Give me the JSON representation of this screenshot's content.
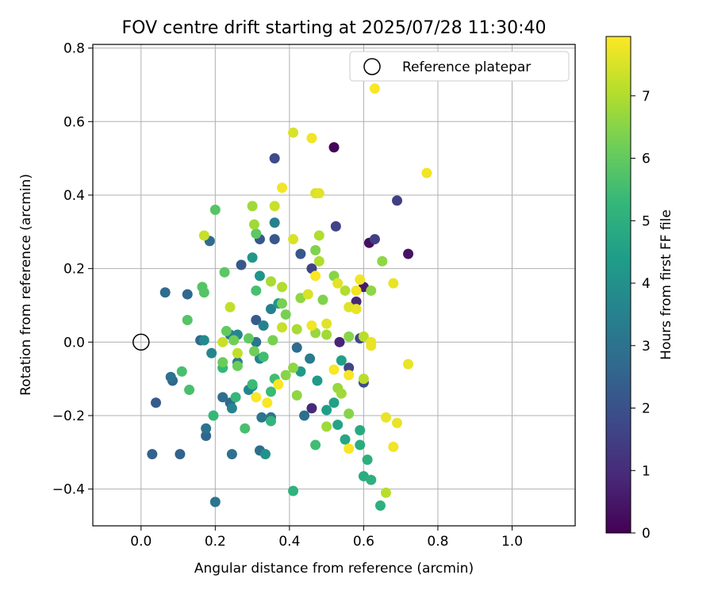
{
  "chart_data": {
    "type": "scatter",
    "title": "FOV centre drift starting at 2025/07/28 11:30:40",
    "xlabel": "Angular distance from reference (arcmin)",
    "ylabel": "Rotation from reference (arcmin)",
    "xlim": [
      -0.13,
      1.17
    ],
    "ylim": [
      -0.5,
      0.81
    ],
    "xticks": [
      0.0,
      0.2,
      0.4,
      0.6,
      0.8,
      1.0
    ],
    "xtick_labels": [
      "0.0",
      "0.2",
      "0.4",
      "0.6",
      "0.8",
      "1.0"
    ],
    "yticks": [
      -0.4,
      -0.2,
      0.0,
      0.2,
      0.4,
      0.6,
      0.8
    ],
    "ytick_labels": [
      "−0.4",
      "−0.2",
      "0.0",
      "0.2",
      "0.4",
      "0.6",
      "0.8"
    ],
    "grid": true,
    "legend": {
      "position": "top-right",
      "entries": [
        {
          "label": "Reference platepar",
          "marker": "open-circle"
        }
      ]
    },
    "reference_point": [
      0.0,
      0.0
    ],
    "colorbar": {
      "label": "Hours from first FF file",
      "colormap": "viridis",
      "range": [
        0,
        7.95
      ],
      "ticks": [
        0,
        1,
        2,
        3,
        4,
        5,
        6,
        7
      ],
      "tick_labels": [
        "0",
        "1",
        "2",
        "3",
        "4",
        "5",
        "6",
        "7"
      ],
      "stops": [
        "#440154",
        "#482878",
        "#3e4989",
        "#31688e",
        "#26828e",
        "#1f9e89",
        "#35b779",
        "#6ece58",
        "#b5de2b",
        "#fde725"
      ]
    },
    "points": [
      [
        0.52,
        0.53,
        0.1
      ],
      [
        0.615,
        0.27,
        0.3
      ],
      [
        0.72,
        0.24,
        0.4
      ],
      [
        0.6,
        0.15,
        0.6
      ],
      [
        0.535,
        0.0,
        0.8
      ],
      [
        0.58,
        0.11,
        0.9
      ],
      [
        0.46,
        -0.18,
        0.9
      ],
      [
        0.63,
        0.28,
        1.5
      ],
      [
        0.69,
        0.385,
        1.5
      ],
      [
        0.525,
        0.315,
        1.6
      ],
      [
        0.36,
        0.5,
        1.8
      ],
      [
        0.46,
        0.2,
        1.6
      ],
      [
        0.56,
        -0.07,
        1.7
      ],
      [
        0.59,
        0.01,
        1.8
      ],
      [
        0.6,
        -0.11,
        1.9
      ],
      [
        0.43,
        0.24,
        2.2
      ],
      [
        0.36,
        0.28,
        2.2
      ],
      [
        0.32,
        0.28,
        2.2
      ],
      [
        0.27,
        0.21,
        2.2
      ],
      [
        0.31,
        0.06,
        2.3
      ],
      [
        0.04,
        -0.165,
        2.3
      ],
      [
        0.03,
        -0.305,
        2.5
      ],
      [
        0.105,
        -0.305,
        2.5
      ],
      [
        0.175,
        -0.255,
        2.6
      ],
      [
        0.085,
        -0.105,
        2.6
      ],
      [
        0.16,
        0.005,
        2.6
      ],
      [
        0.125,
        0.13,
        2.7
      ],
      [
        0.065,
        0.135,
        2.8
      ],
      [
        0.185,
        0.275,
        2.8
      ],
      [
        0.24,
        -0.165,
        2.7
      ],
      [
        0.32,
        -0.295,
        2.9
      ],
      [
        0.42,
        -0.015,
        2.8
      ],
      [
        0.44,
        -0.2,
        2.9
      ],
      [
        0.22,
        -0.15,
        2.9
      ],
      [
        0.08,
        -0.095,
        3.0
      ],
      [
        0.175,
        -0.235,
        3.0
      ],
      [
        0.245,
        -0.305,
        3.0
      ],
      [
        0.35,
        -0.205,
        3.1
      ],
      [
        0.325,
        -0.205,
        3.1
      ],
      [
        0.31,
        0.0,
        3.1
      ],
      [
        0.2,
        -0.435,
        3.1
      ],
      [
        0.26,
        -0.055,
        3.3
      ],
      [
        0.24,
        0.02,
        3.3
      ],
      [
        0.455,
        -0.045,
        3.3
      ],
      [
        0.36,
        0.325,
        3.5
      ],
      [
        0.35,
        0.09,
        3.5
      ],
      [
        0.33,
        0.045,
        3.5
      ],
      [
        0.29,
        -0.13,
        3.6
      ],
      [
        0.32,
        -0.045,
        3.6
      ],
      [
        0.245,
        -0.18,
        3.6
      ],
      [
        0.26,
        0.02,
        3.7
      ],
      [
        0.19,
        -0.03,
        3.7
      ],
      [
        0.17,
        0.005,
        3.8
      ],
      [
        0.3,
        -0.12,
        3.8
      ],
      [
        0.335,
        -0.305,
        4.0
      ],
      [
        0.32,
        0.18,
        4.1
      ],
      [
        0.3,
        0.23,
        4.2
      ],
      [
        0.37,
        0.105,
        4.2
      ],
      [
        0.43,
        -0.08,
        4.3
      ],
      [
        0.475,
        -0.105,
        4.3
      ],
      [
        0.5,
        -0.185,
        4.4
      ],
      [
        0.52,
        -0.165,
        4.5
      ],
      [
        0.54,
        -0.05,
        4.5
      ],
      [
        0.53,
        -0.225,
        4.6
      ],
      [
        0.55,
        -0.265,
        4.7
      ],
      [
        0.59,
        -0.24,
        4.8
      ],
      [
        0.59,
        -0.28,
        4.9
      ],
      [
        0.6,
        -0.365,
        4.9
      ],
      [
        0.61,
        -0.32,
        5.0
      ],
      [
        0.62,
        -0.375,
        5.0
      ],
      [
        0.645,
        -0.445,
        5.0
      ],
      [
        0.41,
        -0.405,
        5.1
      ],
      [
        0.35,
        -0.215,
        5.2
      ],
      [
        0.255,
        -0.15,
        5.3
      ],
      [
        0.22,
        -0.07,
        5.3
      ],
      [
        0.195,
        -0.2,
        5.3
      ],
      [
        0.3,
        -0.115,
        5.4
      ],
      [
        0.35,
        -0.135,
        5.4
      ],
      [
        0.36,
        -0.1,
        5.5
      ],
      [
        0.33,
        -0.04,
        5.5
      ],
      [
        0.47,
        -0.28,
        5.5
      ],
      [
        0.13,
        -0.13,
        5.6
      ],
      [
        0.11,
        -0.08,
        5.6
      ],
      [
        0.31,
        0.14,
        5.6
      ],
      [
        0.28,
        -0.235,
        5.6
      ],
      [
        0.125,
        0.06,
        5.8
      ],
      [
        0.165,
        0.15,
        5.8
      ],
      [
        0.17,
        0.135,
        5.8
      ],
      [
        0.2,
        0.36,
        5.8
      ],
      [
        0.31,
        0.295,
        5.9
      ],
      [
        0.225,
        0.19,
        5.9
      ],
      [
        0.23,
        0.03,
        6.0
      ],
      [
        0.29,
        0.01,
        6.0
      ],
      [
        0.22,
        -0.055,
        6.1
      ],
      [
        0.26,
        -0.065,
        6.1
      ],
      [
        0.25,
        0.005,
        6.2
      ],
      [
        0.305,
        -0.025,
        6.2
      ],
      [
        0.355,
        0.005,
        6.3
      ],
      [
        0.38,
        0.105,
        6.3
      ],
      [
        0.39,
        0.075,
        6.3
      ],
      [
        0.47,
        0.25,
        6.4
      ],
      [
        0.49,
        0.115,
        6.4
      ],
      [
        0.52,
        0.18,
        6.5
      ],
      [
        0.56,
        0.015,
        6.5
      ],
      [
        0.56,
        -0.195,
        6.5
      ],
      [
        0.62,
        0.14,
        6.6
      ],
      [
        0.65,
        0.22,
        6.6
      ],
      [
        0.39,
        -0.09,
        6.5
      ],
      [
        0.41,
        -0.07,
        6.6
      ],
      [
        0.42,
        -0.145,
        6.6
      ],
      [
        0.43,
        0.12,
        6.6
      ],
      [
        0.47,
        0.025,
        6.7
      ],
      [
        0.5,
        0.02,
        6.8
      ],
      [
        0.5,
        -0.23,
        6.8
      ],
      [
        0.53,
        -0.125,
        6.7
      ],
      [
        0.54,
        -0.14,
        6.8
      ],
      [
        0.3,
        0.37,
        6.8
      ],
      [
        0.305,
        0.32,
        6.8
      ],
      [
        0.35,
        0.165,
        6.9
      ],
      [
        0.38,
        0.15,
        7.0
      ],
      [
        0.42,
        0.035,
        6.9
      ],
      [
        0.48,
        0.29,
        7.0
      ],
      [
        0.48,
        0.22,
        7.0
      ],
      [
        0.55,
        0.14,
        7.0
      ],
      [
        0.6,
        0.015,
        7.1
      ],
      [
        0.6,
        -0.1,
        7.1
      ],
      [
        0.66,
        -0.41,
        7.1
      ],
      [
        0.26,
        -0.03,
        7.2
      ],
      [
        0.24,
        0.095,
        7.2
      ],
      [
        0.22,
        0.0,
        7.3
      ],
      [
        0.17,
        0.29,
        7.3
      ],
      [
        0.36,
        0.37,
        7.3
      ],
      [
        0.38,
        0.04,
        7.3
      ],
      [
        0.41,
        0.28,
        7.5
      ],
      [
        0.41,
        0.57,
        7.5
      ],
      [
        0.45,
        0.13,
        7.5
      ],
      [
        0.47,
        0.405,
        7.5
      ],
      [
        0.48,
        0.405,
        7.6
      ],
      [
        0.5,
        0.05,
        7.6
      ],
      [
        0.53,
        0.16,
        7.6
      ],
      [
        0.56,
        0.095,
        7.6
      ],
      [
        0.58,
        0.09,
        7.7
      ],
      [
        0.62,
        0.0,
        7.7
      ],
      [
        0.62,
        -0.01,
        7.7
      ],
      [
        0.68,
        0.16,
        7.7
      ],
      [
        0.69,
        -0.22,
        7.7
      ],
      [
        0.66,
        -0.205,
        7.7
      ],
      [
        0.72,
        -0.06,
        7.7
      ],
      [
        0.77,
        0.46,
        7.8
      ],
      [
        0.63,
        0.69,
        7.9
      ],
      [
        0.46,
        0.555,
        7.8
      ],
      [
        0.38,
        0.42,
        7.8
      ],
      [
        0.59,
        0.17,
        7.8
      ],
      [
        0.58,
        0.14,
        7.8
      ],
      [
        0.47,
        0.18,
        7.9
      ],
      [
        0.52,
        -0.075,
        7.9
      ],
      [
        0.56,
        -0.09,
        7.9
      ],
      [
        0.56,
        -0.29,
        7.9
      ],
      [
        0.68,
        -0.285,
        7.8
      ],
      [
        0.46,
        0.045,
        7.8
      ],
      [
        0.37,
        -0.115,
        7.9
      ],
      [
        0.34,
        -0.165,
        7.9
      ],
      [
        0.31,
        -0.15,
        7.9
      ]
    ]
  }
}
